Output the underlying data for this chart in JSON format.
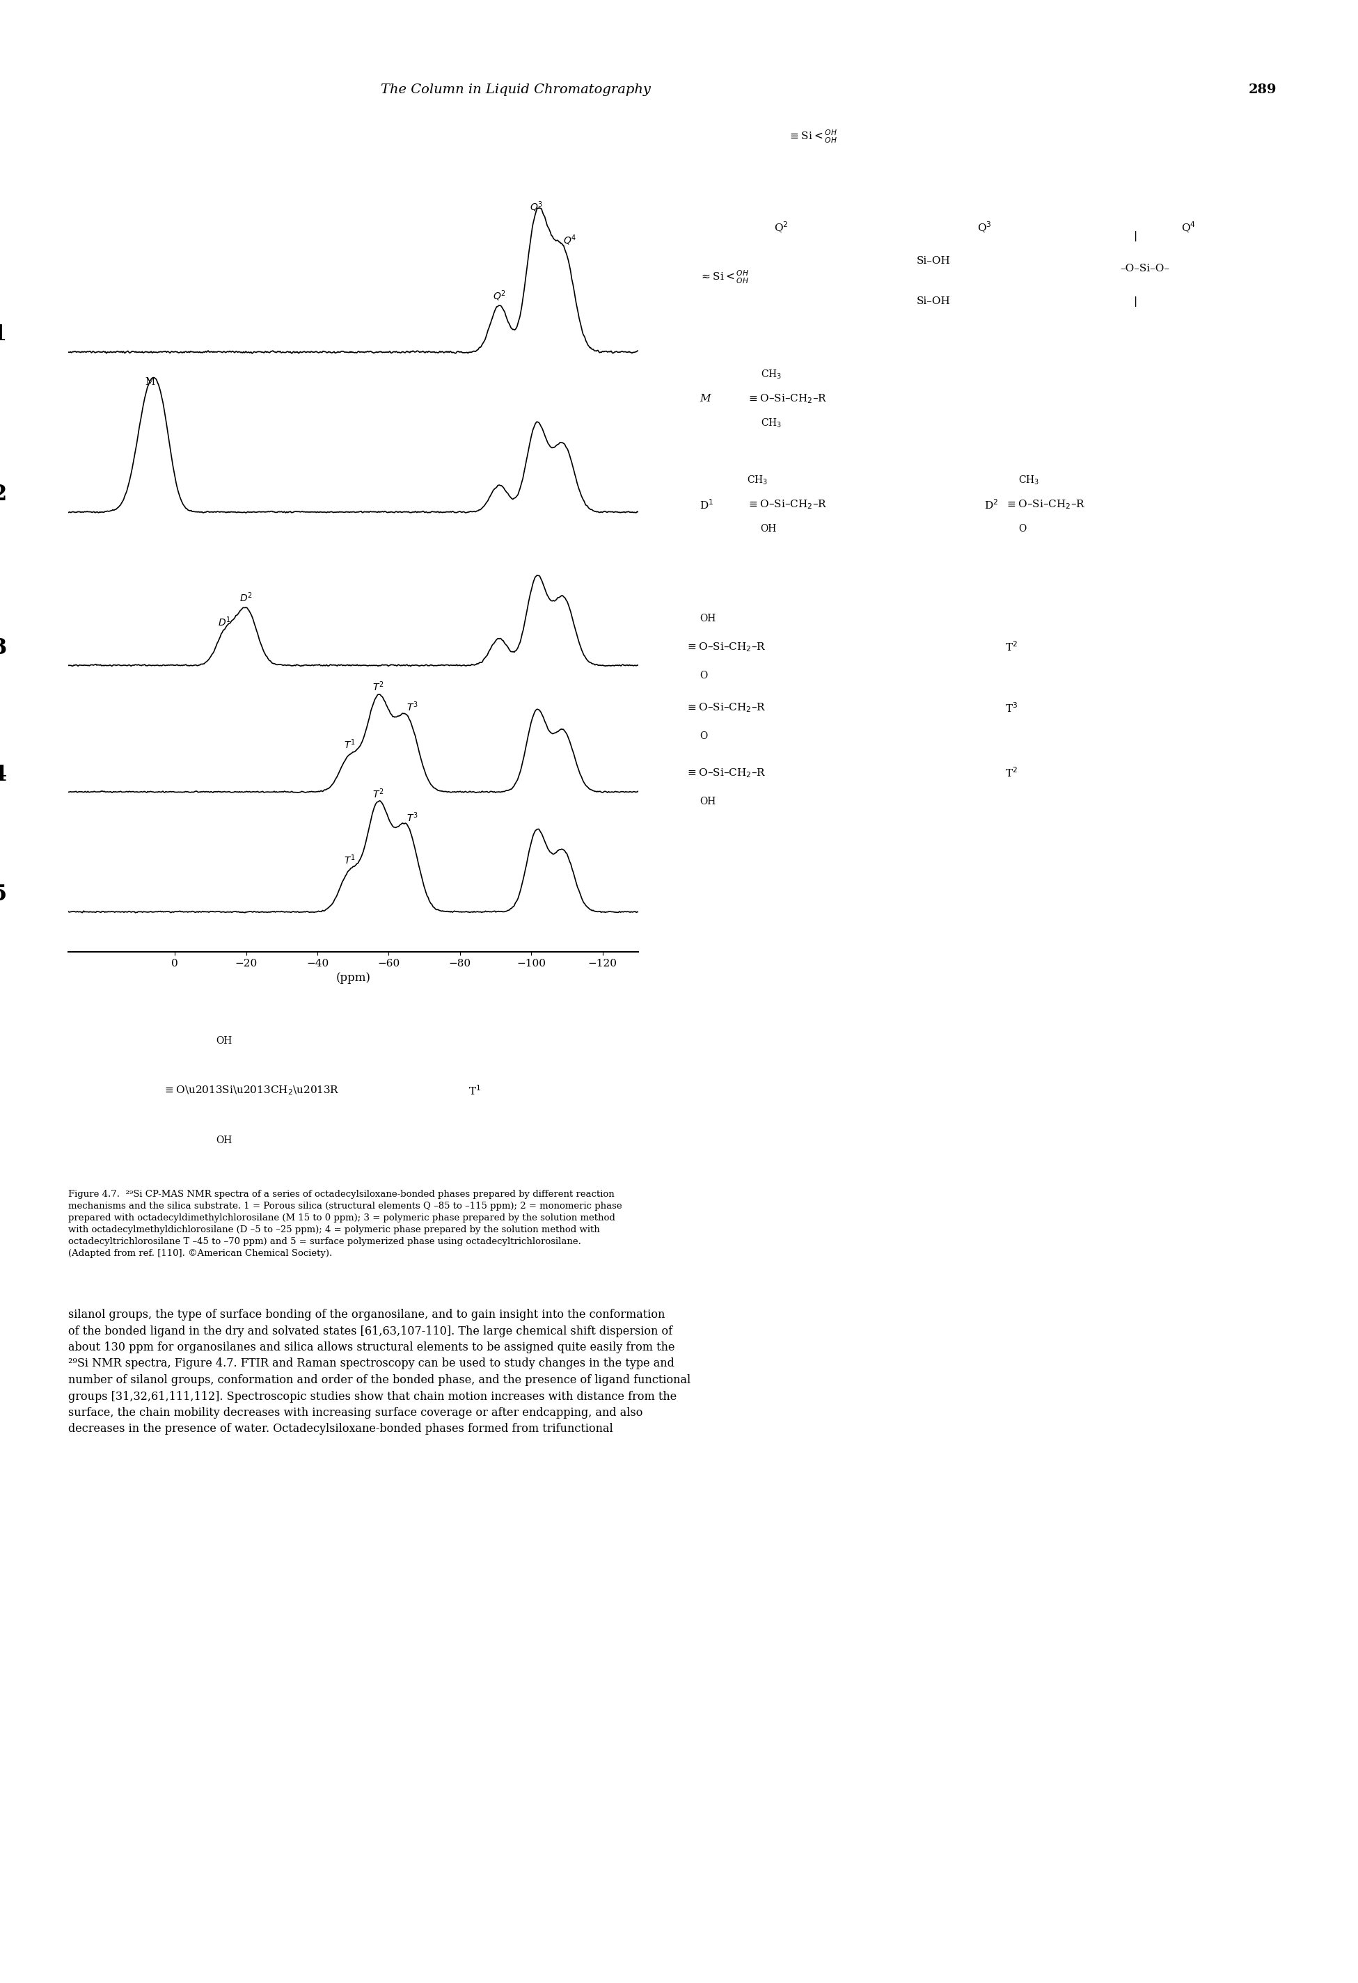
{
  "page_header": "The Column in Liquid Chromatography",
  "page_number": "289",
  "xlabel": "(ppm)",
  "xmin": 30,
  "xmax": -130,
  "background_color": "#ffffff",
  "text_color": "#000000",
  "figure_caption": "Figure 4.7.  ²⁹Si CP-MAS NMR spectra of a series of octadecylsiloxane-bonded phases prepared by different reaction mechanisms and the silica substrate. 1 = Porous silica (structural elements Q –85 to –115 ppm); 2 = monomeric phase prepared with octadecyldimethylchlorosilane (M 15 to 0 ppm); 3 = polymeric phase prepared by the solution method with octadecylmethyldichlorosilane (D –5 to –25 ppm); 4 = polymeric phase prepared by the solution method with octadecyltrichlorosilane T –45 to –70 ppm) and 5 = surface polymerized phase using octadecyltrichlorosilane. (Adapted from ref. [110]. ©American Chemical Society).",
  "body_text": "silanol groups, the type of surface bonding of the organosilane, and to gain insight into the conformation of the bonded ligand in the dry and solvated states [61,63,107-110]. The large chemical shift dispersion of about 130 ppm for organosilanes and silica allows structural elements to be assigned quite easily from the ²⁹Si NMR spectra, Figure 4.7. FTIR and Raman spectroscopy can be used to study changes in the type and number of silanol groups, conformation and order of the bonded phase, and the presence of ligand functional groups [31,32,61,111,112]. Spectroscopic studies show that chain motion increases with distance from the surface, the chain mobility decreases with increasing surface coverage or after endcapping, and also decreases in the presence of water. Octadecylsiloxane-bonded phases formed from trifunctional"
}
